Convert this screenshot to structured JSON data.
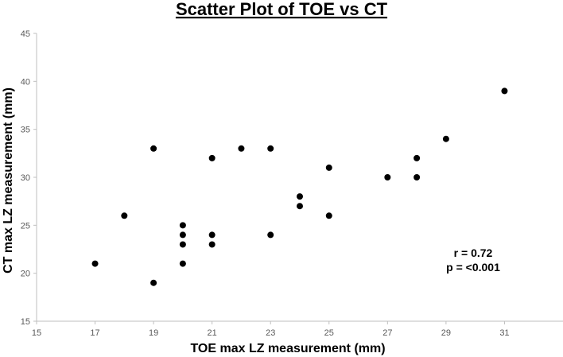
{
  "colors": {
    "point": "#000000",
    "axis": "#bfbfbf",
    "tick_text": "#595959"
  },
  "chart_data": {
    "type": "scatter",
    "title": "Scatter Plot of TOE vs CT",
    "xlabel": "TOE max LZ measurement (mm)",
    "ylabel": "CT max LZ measurement (mm)",
    "xlim": [
      15,
      33
    ],
    "ylim": [
      15,
      45
    ],
    "xticks": [
      15,
      17,
      19,
      21,
      23,
      25,
      27,
      29,
      31
    ],
    "yticks": [
      15,
      20,
      25,
      30,
      35,
      40,
      45
    ],
    "grid": false,
    "series": [
      {
        "name": "TOE vs CT",
        "points": [
          [
            17,
            21
          ],
          [
            18,
            26
          ],
          [
            19,
            33
          ],
          [
            19,
            19
          ],
          [
            20,
            25
          ],
          [
            20,
            24
          ],
          [
            20,
            23
          ],
          [
            20,
            21
          ],
          [
            21,
            32
          ],
          [
            21,
            24
          ],
          [
            21,
            23
          ],
          [
            22,
            33
          ],
          [
            23,
            33
          ],
          [
            23,
            24
          ],
          [
            24,
            28
          ],
          [
            24,
            27
          ],
          [
            25,
            31
          ],
          [
            25,
            26
          ],
          [
            27,
            30
          ],
          [
            28,
            32
          ],
          [
            28,
            30
          ],
          [
            29,
            34
          ],
          [
            31,
            39
          ]
        ]
      }
    ],
    "annotations": [
      "r = 0.72",
      "p = <0.001"
    ]
  }
}
